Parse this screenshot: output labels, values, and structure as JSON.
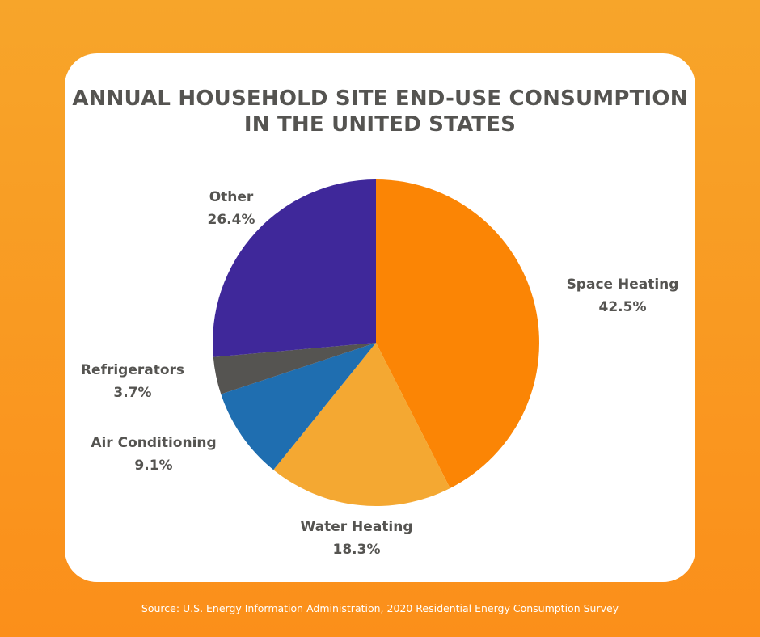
{
  "chart_data": {
    "type": "pie",
    "title_lines": [
      "ANNUAL HOUSEHOLD SITE END-USE CONSUMPTION",
      "IN THE UNITED STATES"
    ],
    "slices": [
      {
        "label": "Space Heating",
        "value": 42.5,
        "value_label": "42.5%",
        "color": "#fb8505"
      },
      {
        "label": "Water Heating",
        "value": 18.3,
        "value_label": "18.3%",
        "color": "#f4a832"
      },
      {
        "label": "Air Conditioning",
        "value": 9.1,
        "value_label": "9.1%",
        "color": "#1f6eb0"
      },
      {
        "label": "Refrigerators",
        "value": 3.7,
        "value_label": "3.7%",
        "color": "#555451"
      },
      {
        "label": "Other",
        "value": 26.4,
        "value_label": "26.4%",
        "color": "#3f289a"
      }
    ],
    "start": "top, clockwise"
  },
  "source": "Source: U.S. Energy Information Administration, 2020 Residential Energy Consumption Survey"
}
